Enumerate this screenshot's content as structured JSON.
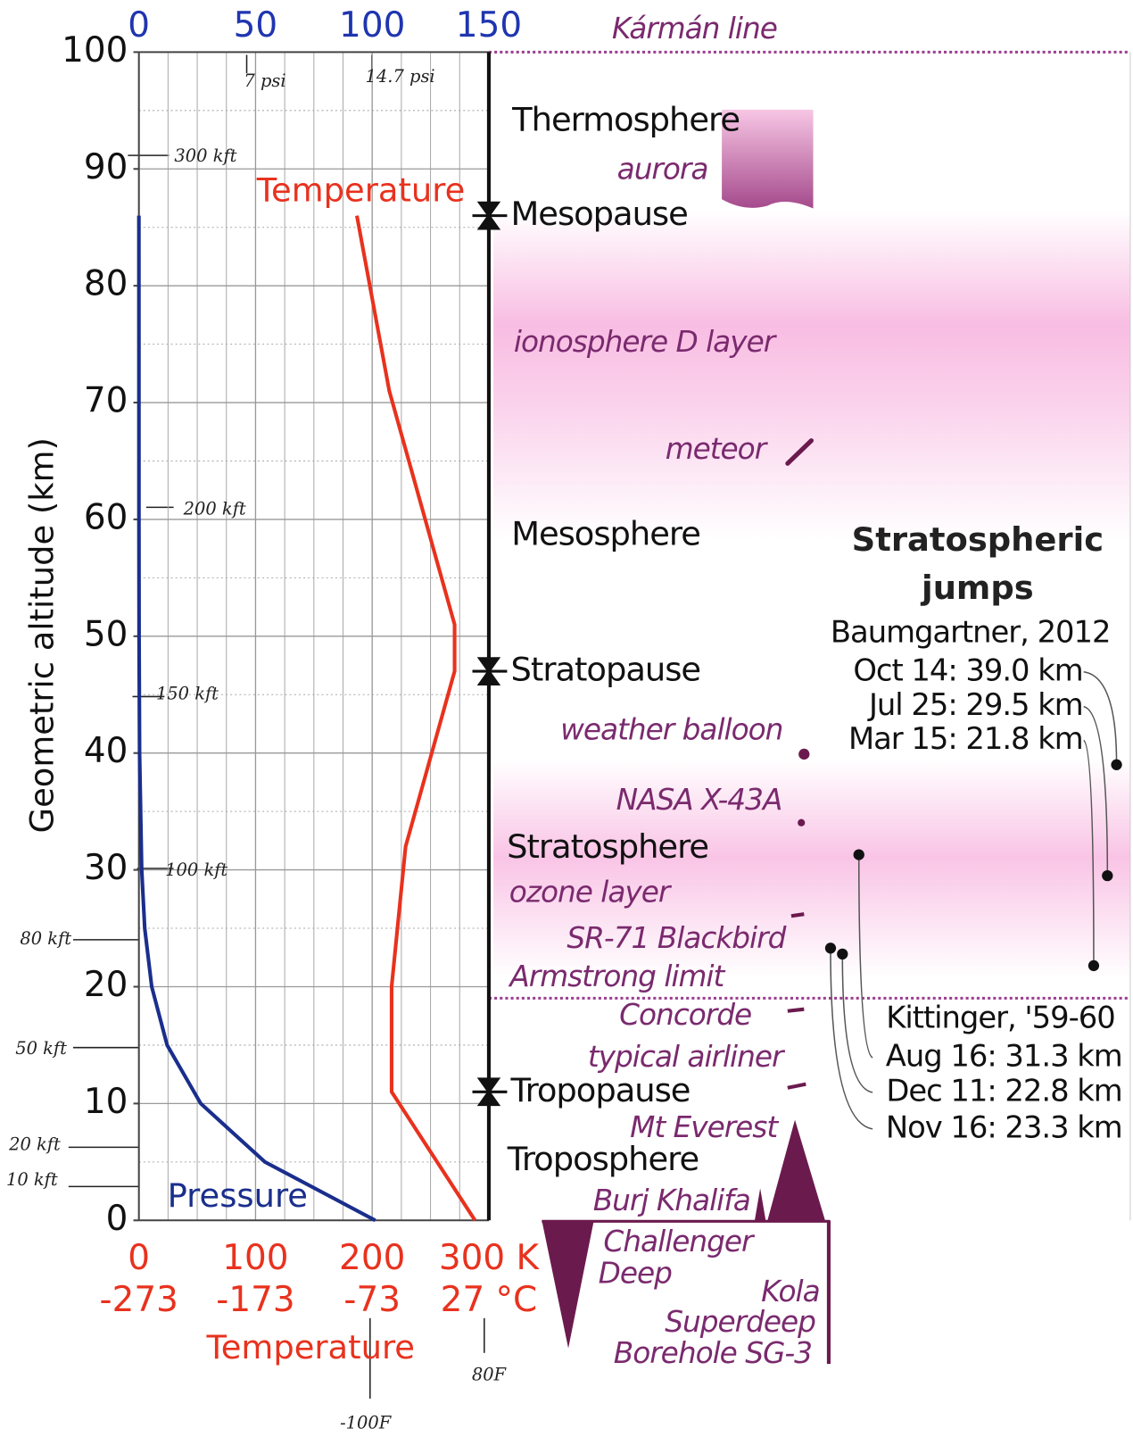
{
  "chart_data": {
    "type": "line",
    "y_label": "Geometric altitude (km)",
    "x_label": "Temperature",
    "xlim": [
      0,
      300
    ],
    "xticks": [
      0,
      100,
      200,
      {
        "value": 300,
        "label": "300 K"
      }
    ],
    "xticks_celsius": [
      {
        "value": 0,
        "label": "-273"
      },
      {
        "value": 100,
        "label": "-173"
      },
      {
        "value": 200,
        "label": "-73"
      },
      {
        "value": 300,
        "label": "27 °C"
      }
    ],
    "x2lim": [
      0,
      150
    ],
    "x2ticks": [
      0,
      50,
      100,
      150
    ],
    "ylim": [
      0,
      100
    ],
    "yticks": [
      0,
      10,
      20,
      30,
      40,
      50,
      60,
      70,
      80,
      90,
      100
    ],
    "minor_xticks": [
      25,
      50,
      75,
      125,
      150,
      175,
      225,
      250,
      275
    ],
    "minor_yticks": [
      5,
      15,
      25,
      35,
      45,
      55,
      65,
      75,
      85,
      95
    ],
    "grid": true,
    "series": [
      {
        "name": "Temperature",
        "color": "#e8321e",
        "axis": "x",
        "x": [
          288.15,
          216.65,
          216.65,
          228.65,
          270.65,
          270.65,
          214.65,
          186.87
        ],
        "y": [
          0,
          11,
          20,
          32,
          47,
          51,
          71,
          86
        ]
      },
      {
        "name": "Pressure",
        "color": "#1a2e8c",
        "axis": "x2",
        "x": [
          101.325,
          54.0,
          26.5,
          12.1,
          5.5,
          2.5,
          1.2,
          0.29,
          0.08,
          0.02,
          0
        ],
        "y": [
          0,
          5,
          10,
          15,
          20,
          25,
          30,
          40,
          50,
          60,
          86
        ]
      }
    ],
    "layers": [
      "Thermosphere",
      "Mesosphere",
      "Stratosphere",
      "Troposphere"
    ],
    "boundaries": [
      {
        "name": "Mesopause",
        "altitude": 86
      },
      {
        "name": "Stratopause",
        "altitude": 47
      },
      {
        "name": "Tropopause",
        "altitude": 11
      }
    ],
    "annotations": [
      "Kármán line",
      "aurora",
      "ionosphere D layer",
      "meteor",
      "weather balloon",
      "NASA X-43A",
      "ozone layer",
      "SR-71 Blackbird",
      "Armstrong limit",
      "Concorde",
      "typical airliner",
      "Mt Everest",
      "Burj Khalifa",
      "Challenger",
      "Deep",
      "Kola",
      "Superdeep",
      "Borehole SG-3"
    ],
    "jumps_title": [
      "Stratospheric",
      "jumps"
    ],
    "jumps": [
      {
        "name": "Baumgartner, 2012",
        "entries": [
          {
            "label": "Oct 14: 39.0 km",
            "altitude": 39.0
          },
          {
            "label": "Jul 25: 29.5 km",
            "altitude": 29.5
          },
          {
            "label": "Mar 15: 21.8 km",
            "altitude": 21.8
          }
        ]
      },
      {
        "name": "Kittinger, '59-60",
        "entries": [
          {
            "label": "Aug 16: 31.3 km",
            "altitude": 31.3
          },
          {
            "label": "Dec 11: 22.8 km",
            "altitude": 22.8
          },
          {
            "label": "Nov 16: 23.3 km",
            "altitude": 23.3
          }
        ]
      }
    ],
    "handwritten": [
      "7 psi",
      "14.7 psi",
      "300 kft",
      "200 kft",
      "150 kft",
      "100 kft",
      "80 kft",
      "50 kft",
      "20 kft",
      "10 kft",
      "-100F",
      "80F"
    ]
  }
}
